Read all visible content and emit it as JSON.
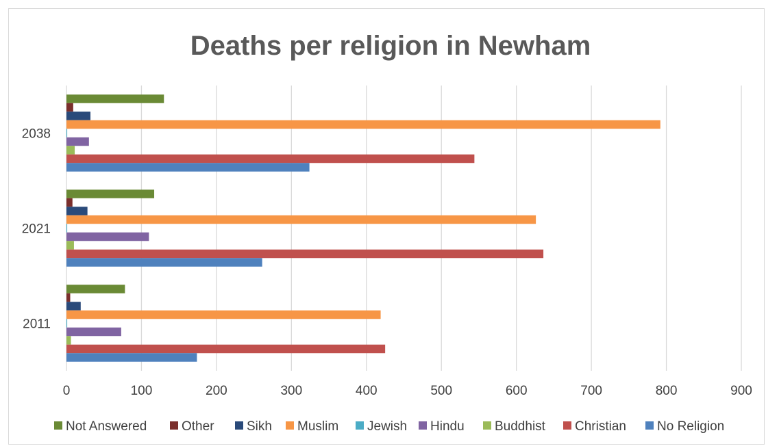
{
  "chart_data": {
    "type": "bar",
    "orientation": "horizontal",
    "title": "Deaths per religion in Newham",
    "categories": [
      "2011",
      "2021",
      "2038"
    ],
    "xlim": [
      0,
      900
    ],
    "xticks": [
      0,
      100,
      200,
      300,
      400,
      500,
      600,
      700,
      800,
      900
    ],
    "grid": true,
    "legend_position": "bottom",
    "series": [
      {
        "name": "Not Answered",
        "color": "#6a8a35",
        "values": [
          78,
          117,
          130
        ]
      },
      {
        "name": "Other",
        "color": "#7b2f2c",
        "values": [
          5,
          8,
          9
        ]
      },
      {
        "name": "Sikh",
        "color": "#2a4a7a",
        "values": [
          19,
          28,
          32
        ]
      },
      {
        "name": "Muslim",
        "color": "#f79646",
        "values": [
          419,
          626,
          792
        ]
      },
      {
        "name": "Jewish",
        "color": "#4bacc6",
        "values": [
          1,
          1,
          1
        ]
      },
      {
        "name": "Hindu",
        "color": "#8064a2",
        "values": [
          73,
          110,
          30
        ]
      },
      {
        "name": "Buddhist",
        "color": "#9bbb59",
        "values": [
          6,
          10,
          11
        ]
      },
      {
        "name": "Christian",
        "color": "#c0504d",
        "values": [
          425,
          636,
          544
        ]
      },
      {
        "name": "No Religion",
        "color": "#4f81bd",
        "values": [
          174,
          261,
          324
        ]
      }
    ]
  }
}
